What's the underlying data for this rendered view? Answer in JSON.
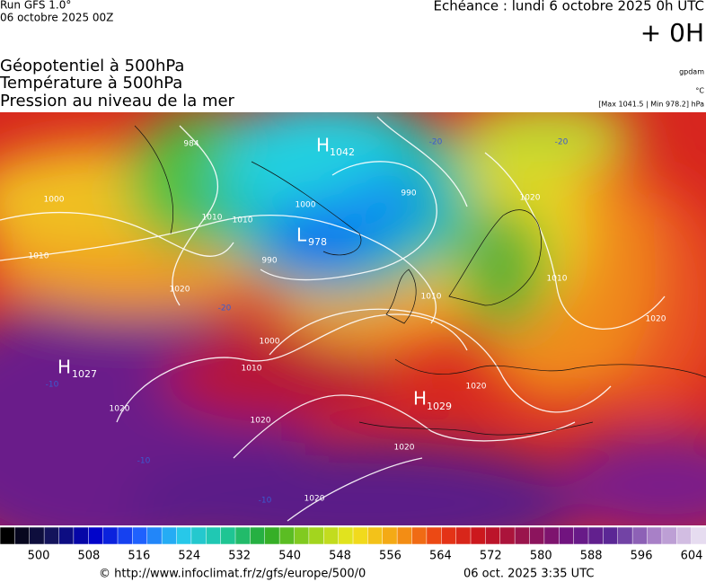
{
  "header": {
    "run": "Run GFS 1.0°",
    "date": "06 octobre 2025 00Z",
    "echeance": "Echéance : lundi 6 octobre 2025 0h UTC",
    "offset": "+ 0H",
    "fields": [
      "Géopotentiel à 500hPa",
      "Température à 500hPa",
      "Pression au niveau de la mer"
    ],
    "units": [
      "gpdam",
      "°C",
      "[Max 1041.5 | Min 978.2] hPa"
    ]
  },
  "centers": [
    {
      "letter": "H",
      "value": "1042"
    },
    {
      "letter": "L",
      "value": "978"
    },
    {
      "letter": "H",
      "value": "1027"
    },
    {
      "letter": "H",
      "value": "1029"
    }
  ],
  "isobar_labels": [
    "984",
    "1000",
    "1010",
    "1010",
    "1000",
    "990",
    "990",
    "1020",
    "1000",
    "1010",
    "1020",
    "1020",
    "1020",
    "1020",
    "1010",
    "1020",
    "1010",
    "1020",
    "1020",
    "1010"
  ],
  "temperature_labels": [
    "-20",
    "-20",
    "-10",
    "-10",
    "-10",
    "-20"
  ],
  "colorbar": {
    "ticks": [
      "500",
      "508",
      "516",
      "524",
      "532",
      "540",
      "548",
      "556",
      "564",
      "572",
      "580",
      "588",
      "596",
      "604"
    ]
  },
  "footer": {
    "url": "© http://www.infoclimat.fr/z/gfs/europe/500/0",
    "time": "06 oct. 2025  3:35 UTC"
  }
}
